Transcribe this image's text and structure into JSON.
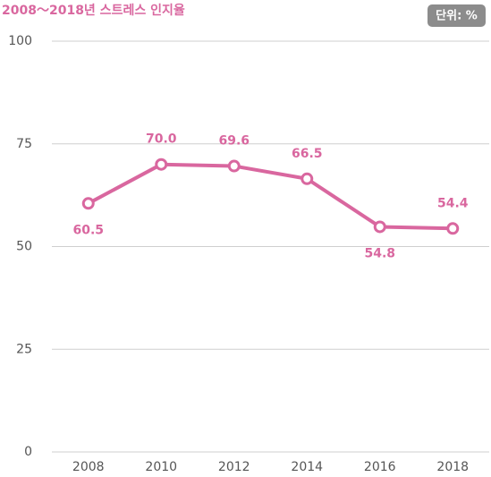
{
  "chart_data": {
    "type": "line",
    "title": "2008～2018년 스트레스 인지율",
    "unit_label": "단위: %",
    "categories": [
      "2008",
      "2010",
      "2012",
      "2014",
      "2016",
      "2018"
    ],
    "series": [
      {
        "name": "스트레스 인지율",
        "color": "#d9679f",
        "values": [
          60.5,
          70.0,
          69.6,
          66.5,
          54.8,
          54.4
        ],
        "value_labels": [
          "60.5",
          "70.0",
          "69.6",
          "66.5",
          "54.8",
          "54.4"
        ]
      }
    ],
    "ylim": [
      0,
      100
    ],
    "yticks": [
      0,
      25,
      50,
      75,
      100
    ],
    "grid": true
  }
}
